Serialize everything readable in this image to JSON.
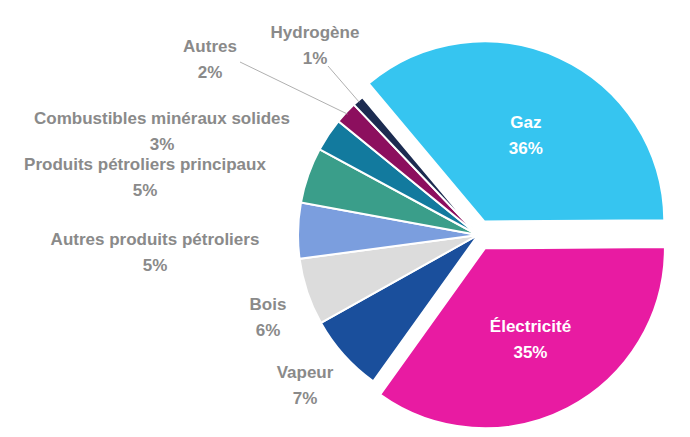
{
  "chart_data": {
    "type": "pie",
    "categories": [
      "Gaz",
      "Électricité",
      "Vapeur",
      "Bois",
      "Autres produits pétroliers",
      "Produits pétroliers principaux",
      "Combustibles minéraux solides",
      "Autres",
      "Hydrogène"
    ],
    "values": [
      36,
      35,
      7,
      6,
      5,
      5,
      3,
      2,
      1
    ],
    "value_labels": [
      "36%",
      "35%",
      "7%",
      "6%",
      "5%",
      "5%",
      "3%",
      "2%",
      "1%"
    ],
    "colors": [
      "#36c5f0",
      "#e81ba2",
      "#1a4f9c",
      "#dcdcdc",
      "#7b9ede",
      "#3a9e8a",
      "#127a9e",
      "#8c0f5e",
      "#1c2b50"
    ],
    "data_labels": true
  }
}
